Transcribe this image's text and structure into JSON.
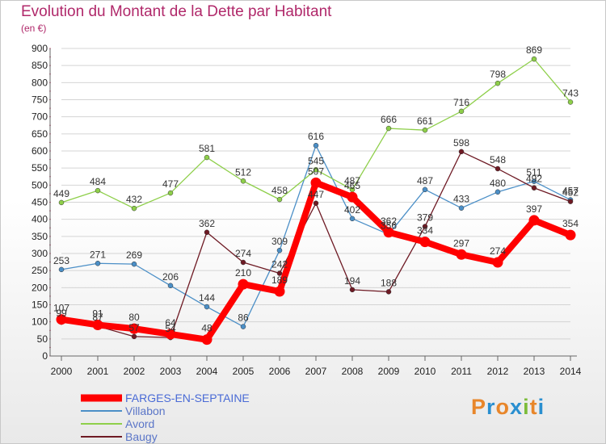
{
  "header": {
    "title": "Evolution du Montant de la Dette par Habitant",
    "unit": "(en €)"
  },
  "logo": {
    "letters": [
      "P",
      "r",
      "o",
      "x",
      "i",
      "t",
      "i"
    ],
    "colors": [
      "#e8862a",
      "#2a8fd0",
      "#e8862a",
      "#2a8fd0",
      "#7cbc3a",
      "#e8862a",
      "#2a8fd0"
    ]
  },
  "chart_data": {
    "type": "line",
    "title": "Evolution du Montant de la Dette par Habitant",
    "subtitle": "(en €)",
    "xlabel": "",
    "ylabel": "",
    "x": [
      "2000",
      "2001",
      "2002",
      "2003",
      "2004",
      "2005",
      "2006",
      "2007",
      "2008",
      "2009",
      "2010",
      "2011",
      "2012",
      "2013",
      "2014"
    ],
    "ylim": [
      0,
      900
    ],
    "yticks": [
      0,
      50,
      100,
      150,
      200,
      250,
      300,
      350,
      400,
      450,
      500,
      550,
      600,
      650,
      700,
      750,
      800,
      850,
      900
    ],
    "grid": "horizontal",
    "legend": "bottom-left",
    "series": [
      {
        "name": "FARGES-EN-SEPTAINE",
        "color": "#ff0000",
        "values": [
          107,
          91,
          80,
          64,
          48,
          210,
          189,
          507,
          465,
          362,
          334,
          297,
          274,
          397,
          354
        ]
      },
      {
        "name": "Villabon",
        "color": "#4b8fc7",
        "values": [
          253,
          271,
          269,
          206,
          144,
          86,
          309,
          616,
          402,
          356,
          487,
          433,
          480,
          511,
          457
        ]
      },
      {
        "name": "Avord",
        "color": "#8ecf4a",
        "values": [
          449,
          484,
          432,
          477,
          581,
          512,
          458,
          545,
          487,
          666,
          661,
          716,
          798,
          869,
          743
        ]
      },
      {
        "name": "Baugy",
        "color": "#6e1a24",
        "values": [
          99,
          87,
          57,
          54,
          362,
          274,
          242,
          447,
          194,
          188,
          379,
          598,
          548,
          492,
          452
        ]
      }
    ]
  }
}
